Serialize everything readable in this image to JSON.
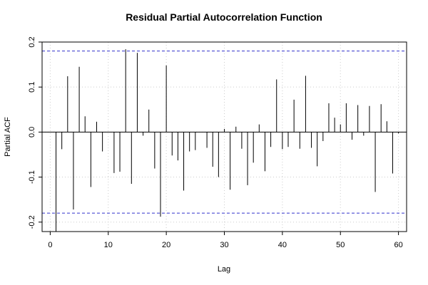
{
  "chart_data": {
    "type": "bar",
    "title": "Residual Partial Autocorrelation Function",
    "xlabel": "Lag",
    "ylabel": "Partial ACF",
    "xlim": [
      -1.4,
      61.4
    ],
    "ylim": [
      -0.221,
      0.2
    ],
    "x_ticks": [
      0,
      10,
      20,
      30,
      40,
      50,
      60
    ],
    "x_tick_labels": [
      "0",
      "10",
      "20",
      "30",
      "40",
      "50",
      "60"
    ],
    "y_ticks": [
      -0.2,
      -0.1,
      0.0,
      0.1,
      0.2
    ],
    "y_tick_labels": [
      "-0.2",
      "-0.1",
      "0.0",
      "0.1",
      "0.2"
    ],
    "grid": true,
    "confidence_bound": 0.18,
    "colors": {
      "bars": "#000000",
      "confidence": "#3333cc",
      "grid": "#cccccc",
      "zero_line": "#000000"
    },
    "x": [
      1,
      2,
      3,
      4,
      5,
      6,
      7,
      8,
      9,
      10,
      11,
      12,
      13,
      14,
      15,
      16,
      17,
      18,
      19,
      20,
      21,
      22,
      23,
      24,
      25,
      26,
      27,
      28,
      29,
      30,
      31,
      32,
      33,
      34,
      35,
      36,
      37,
      38,
      39,
      40,
      41,
      42,
      43,
      44,
      45,
      46,
      47,
      48,
      49,
      50,
      51,
      52,
      53,
      54,
      55,
      56,
      57,
      58,
      59,
      60
    ],
    "values": [
      -0.221,
      -0.038,
      0.124,
      -0.172,
      0.145,
      0.035,
      -0.122,
      0.023,
      -0.043,
      0.0,
      -0.091,
      -0.088,
      0.184,
      -0.115,
      0.176,
      -0.008,
      0.05,
      -0.081,
      -0.188,
      0.148,
      -0.052,
      -0.063,
      -0.13,
      -0.043,
      -0.04,
      0.0,
      -0.035,
      -0.077,
      -0.1,
      0.007,
      -0.128,
      0.012,
      -0.037,
      -0.118,
      -0.068,
      0.017,
      -0.087,
      -0.033,
      0.117,
      -0.038,
      -0.033,
      0.072,
      -0.037,
      0.125,
      -0.035,
      -0.076,
      -0.02,
      0.064,
      0.032,
      0.017,
      0.064,
      -0.017,
      0.06,
      -0.008,
      0.058,
      -0.133,
      0.062,
      0.024,
      -0.092,
      -0.003
    ]
  }
}
